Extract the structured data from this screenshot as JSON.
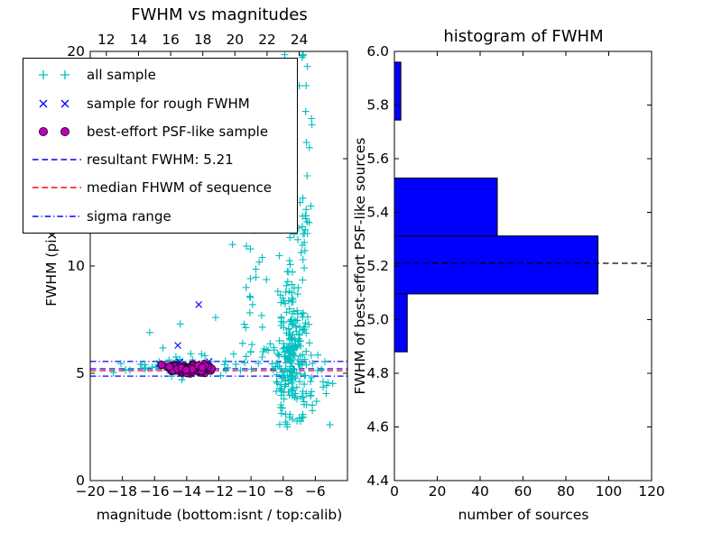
{
  "figure": {
    "background": "#ffffff"
  },
  "chart_data": [
    {
      "type": "scatter",
      "title": "FWHM vs magnitudes",
      "xlabel": "magnitude (bottom:isnt / top:calib)",
      "ylabel": "FWHM (pix)",
      "xlim": [
        -20,
        -4
      ],
      "ylim": [
        0,
        20
      ],
      "xticks": [
        -20,
        -18,
        -16,
        -14,
        -12,
        -10,
        -8,
        -6
      ],
      "xtick_labels": [
        "−20",
        "−18",
        "−16",
        "−14",
        "−12",
        "−10",
        "−8",
        "−6"
      ],
      "yticks": [
        0,
        5,
        10,
        15,
        20
      ],
      "ytick_labels": [
        "0",
        "5",
        "10",
        "15",
        "20"
      ],
      "top_axis": {
        "ticks": [
          12,
          14,
          16,
          18,
          20,
          22,
          24
        ],
        "labels": [
          "12",
          "14",
          "16",
          "18",
          "20",
          "22",
          "24"
        ],
        "data_offset": -31
      },
      "series": [
        {
          "name": "all sample",
          "marker": "+",
          "color": "#00BFBF",
          "seed": 1234,
          "points": [
            [
              -7.9,
              19.85
            ],
            [
              -6.8,
              19.8
            ],
            [
              -6.5,
              19.3
            ],
            [
              -7.0,
              18.4
            ],
            [
              -6.6,
              17.2
            ],
            [
              -15.35,
              12.5
            ],
            [
              -12.95,
              13.1
            ],
            [
              -11.15,
              11.0
            ],
            [
              -14.4,
              7.3
            ],
            [
              -9.7,
              9.85
            ],
            [
              -9.9,
              8.2
            ],
            [
              -10.3,
              9.0
            ],
            [
              -12.2,
              7.6
            ],
            [
              -16.3,
              6.9
            ],
            [
              -17.8,
              5.15
            ],
            [
              -9.3,
              10.4
            ]
          ],
          "clusters": [
            {
              "count": 200,
              "x": {
                "dist": "gauss",
                "mu": -7.5,
                "sd": 0.52,
                "min": -8.9,
                "max": -6.15
              },
              "y": {
                "dist": "gauss",
                "mu": 5.6,
                "sd": 1.3,
                "min": 2.6,
                "max": 10.5
              }
            },
            {
              "count": 45,
              "x": {
                "dist": "gauss",
                "mu": -7.4,
                "sd": 0.5,
                "min": -8.6,
                "max": -6.2
              },
              "y": {
                "dist": "powtail",
                "base": 7,
                "scale": 4.5,
                "pow": 1.3
              }
            },
            {
              "count": 25,
              "x": {
                "dist": "gauss",
                "mu": -6.6,
                "sd": 0.28,
                "min": -7.05,
                "max": -6.2
              },
              "y": {
                "dist": "powtail",
                "base": 11.5,
                "scale": 8.4,
                "pow": 1.7
              }
            },
            {
              "count": 50,
              "x": {
                "dist": "uniform",
                "min": -17.2,
                "max": -9.0
              },
              "y": {
                "dist": "gauss",
                "mu": 5.4,
                "sd": 0.33,
                "min": 4.4,
                "max": 6.6
              }
            },
            {
              "count": 4,
              "x": {
                "dist": "uniform",
                "min": -18.6,
                "max": -17.4
              },
              "y": {
                "dist": "gauss",
                "mu": 5.3,
                "sd": 0.15,
                "min": 4.9,
                "max": 5.7
              }
            },
            {
              "count": 22,
              "x": {
                "dist": "uniform",
                "min": -10.6,
                "max": -8.9
              },
              "y": {
                "dist": "powtail",
                "base": 6,
                "scale": 7,
                "pow": 2
              }
            },
            {
              "count": 7,
              "x": {
                "dist": "gauss",
                "mu": -7.7,
                "sd": 0.5,
                "min": -8.8,
                "max": -6.6
              },
              "y": {
                "dist": "uniform",
                "min": 2.2,
                "max": 3.3
              }
            },
            {
              "count": 20,
              "x": {
                "dist": "uniform",
                "min": -6.3,
                "max": -4.8
              },
              "y": {
                "dist": "gauss",
                "mu": 4.8,
                "sd": 0.9,
                "min": 2.6,
                "max": 7.0
              }
            }
          ]
        },
        {
          "name": "sample for rough FWHM",
          "marker": "x",
          "color": "#0000FF",
          "points": [
            [
              -13.25,
              8.2
            ],
            [
              -14.55,
              6.3
            ],
            [
              -15.7,
              5.45
            ],
            [
              -15.1,
              5.3
            ],
            [
              -14.45,
              5.52
            ],
            [
              -13.9,
              5.25
            ],
            [
              -13.35,
              5.45
            ],
            [
              -12.75,
              5.35
            ],
            [
              -12.6,
              5.55
            ]
          ]
        },
        {
          "name": "best-effort PSF-like sample",
          "marker": "o",
          "color": "#BF00BF",
          "edge_color": "#2d002d",
          "seed": 77,
          "clusters": [
            {
              "count": 100,
              "x": {
                "dist": "gauss",
                "mu": -13.9,
                "sd": 0.85,
                "min": -15.6,
                "max": -12.35
              },
              "y": {
                "dist": "gauss",
                "mu": 5.22,
                "sd": 0.13,
                "min": 4.93,
                "max": 5.58
              }
            }
          ]
        }
      ],
      "hlines": [
        {
          "label": "resultant FWHM: 5.21",
          "y": 5.21,
          "color": "#0000FF",
          "style": "dashed"
        },
        {
          "label": "median FHWM of sequence",
          "y": 5.12,
          "color": "#FF0000",
          "style": "dashed"
        },
        {
          "label": "sigma range",
          "y": 5.55,
          "color": "#0000FF",
          "style": "dashdot"
        },
        {
          "label": "sigma range",
          "y": 4.87,
          "color": "#0000FF",
          "style": "dashdot"
        }
      ],
      "legend": [
        {
          "label": "all sample",
          "kind": "plus",
          "color": "#00BFBF"
        },
        {
          "label": "sample for rough FWHM",
          "kind": "x",
          "color": "#0000FF"
        },
        {
          "label": "best-effort PSF-like sample",
          "kind": "circle",
          "color": "#BF00BF"
        },
        {
          "label": "resultant FWHM: 5.21",
          "kind": "dashed",
          "color": "#0000FF"
        },
        {
          "label": "median FHWM of sequence",
          "kind": "dashed",
          "color": "#FF0000"
        },
        {
          "label": "sigma range",
          "kind": "dashdot",
          "color": "#0000FF"
        }
      ]
    },
    {
      "type": "bar",
      "orientation": "horizontal",
      "title": "histogram of FWHM",
      "xlabel": "number of sources",
      "ylabel": "FWHM of best-effort PSF-like sources",
      "xlim": [
        0,
        120
      ],
      "ylim": [
        4.4,
        6.0
      ],
      "xticks": [
        0,
        20,
        40,
        60,
        80,
        100,
        120
      ],
      "xtick_labels": [
        "0",
        "20",
        "40",
        "60",
        "80",
        "100",
        "120"
      ],
      "yticks": [
        4.4,
        4.6,
        4.8,
        5.0,
        5.2,
        5.4,
        5.6,
        5.8,
        6.0
      ],
      "ytick_labels": [
        "4.4",
        "4.6",
        "4.8",
        "5.0",
        "5.2",
        "5.4",
        "5.6",
        "5.8",
        "6.0"
      ],
      "bin_edges": [
        4.88,
        5.096,
        5.312,
        5.528,
        5.744,
        5.96
      ],
      "counts": [
        6,
        95,
        48,
        0,
        3
      ],
      "bar_color": "#0000FF",
      "bar_edge_color": "#000000",
      "hline": {
        "label": "resultant FWHM",
        "y": 5.21,
        "color": "#000000",
        "style": "dashed"
      }
    }
  ]
}
